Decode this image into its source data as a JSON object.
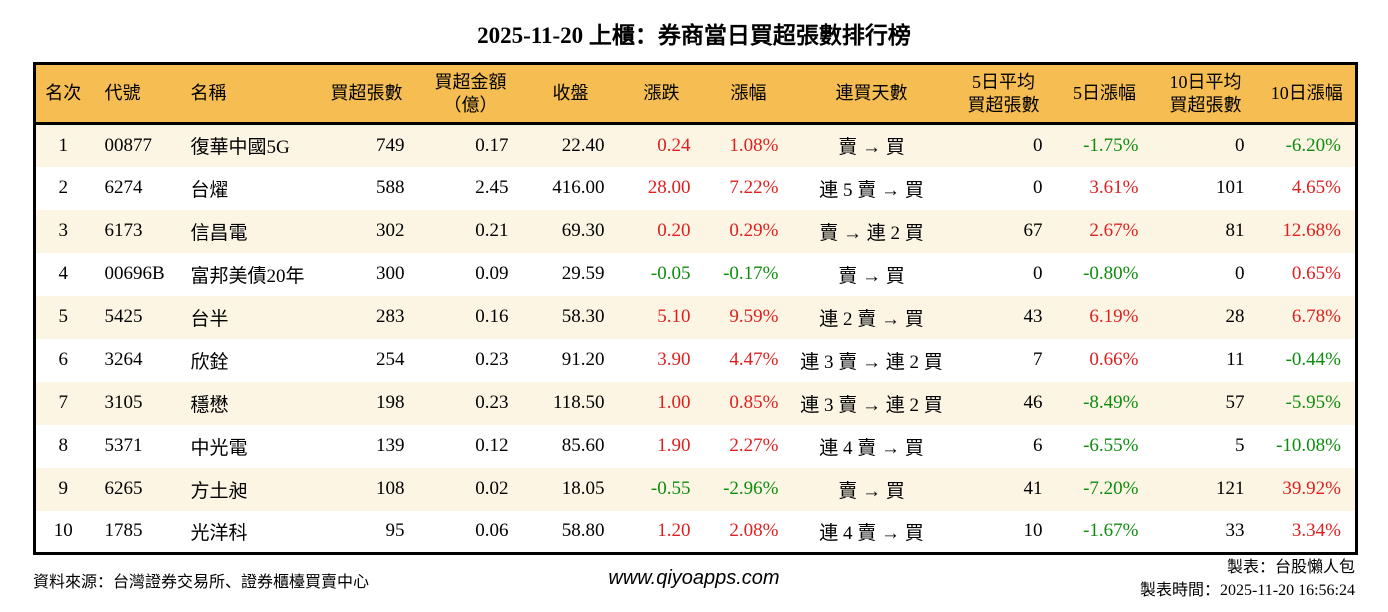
{
  "title": "2025-11-20 上櫃：券商當日買超張數排行榜",
  "colors": {
    "header-bg": "#f5bd52",
    "stripe-bg": "#fdf5e3",
    "red": "#dd1f1f",
    "green": "#0e8c0e"
  },
  "table": {
    "headers": [
      "名次",
      "代號",
      "名稱",
      "買超張數",
      "買超金額\n（億）",
      "收盤",
      "漲跌",
      "漲幅",
      "連買天數",
      "5日平均\n買超張數",
      "5日漲幅",
      "10日平均\n買超張數",
      "10日漲幅"
    ],
    "rows": [
      {
        "cells": [
          {
            "text": "1"
          },
          {
            "text": "00877"
          },
          {
            "text": "復華中國5G"
          },
          {
            "text": "749"
          },
          {
            "text": "0.17"
          },
          {
            "text": "22.40"
          },
          {
            "text": "0.24",
            "color": "red"
          },
          {
            "text": "1.08%",
            "color": "red"
          },
          {
            "text": "賣 → 買"
          },
          {
            "text": "0"
          },
          {
            "text": "-1.75%",
            "color": "green"
          },
          {
            "text": "0"
          },
          {
            "text": "-6.20%",
            "color": "green"
          }
        ]
      },
      {
        "cells": [
          {
            "text": "2"
          },
          {
            "text": "6274"
          },
          {
            "text": "台燿"
          },
          {
            "text": "588"
          },
          {
            "text": "2.45"
          },
          {
            "text": "416.00"
          },
          {
            "text": "28.00",
            "color": "red"
          },
          {
            "text": "7.22%",
            "color": "red"
          },
          {
            "text": "連 5 賣 → 買"
          },
          {
            "text": "0"
          },
          {
            "text": "3.61%",
            "color": "red"
          },
          {
            "text": "101"
          },
          {
            "text": "4.65%",
            "color": "red"
          }
        ]
      },
      {
        "cells": [
          {
            "text": "3"
          },
          {
            "text": "6173"
          },
          {
            "text": "信昌電"
          },
          {
            "text": "302"
          },
          {
            "text": "0.21"
          },
          {
            "text": "69.30"
          },
          {
            "text": "0.20",
            "color": "red"
          },
          {
            "text": "0.29%",
            "color": "red"
          },
          {
            "text": "賣 → 連 2 買"
          },
          {
            "text": "67"
          },
          {
            "text": "2.67%",
            "color": "red"
          },
          {
            "text": "81"
          },
          {
            "text": "12.68%",
            "color": "red"
          }
        ]
      },
      {
        "cells": [
          {
            "text": "4"
          },
          {
            "text": "00696B"
          },
          {
            "text": "富邦美債20年"
          },
          {
            "text": "300"
          },
          {
            "text": "0.09"
          },
          {
            "text": "29.59"
          },
          {
            "text": "-0.05",
            "color": "green"
          },
          {
            "text": "-0.17%",
            "color": "green"
          },
          {
            "text": "賣 → 買"
          },
          {
            "text": "0"
          },
          {
            "text": "-0.80%",
            "color": "green"
          },
          {
            "text": "0"
          },
          {
            "text": "0.65%",
            "color": "red"
          }
        ]
      },
      {
        "cells": [
          {
            "text": "5"
          },
          {
            "text": "5425"
          },
          {
            "text": "台半"
          },
          {
            "text": "283"
          },
          {
            "text": "0.16"
          },
          {
            "text": "58.30"
          },
          {
            "text": "5.10",
            "color": "red"
          },
          {
            "text": "9.59%",
            "color": "red"
          },
          {
            "text": "連 2 賣 → 買"
          },
          {
            "text": "43"
          },
          {
            "text": "6.19%",
            "color": "red"
          },
          {
            "text": "28"
          },
          {
            "text": "6.78%",
            "color": "red"
          }
        ]
      },
      {
        "cells": [
          {
            "text": "6"
          },
          {
            "text": "3264"
          },
          {
            "text": "欣銓"
          },
          {
            "text": "254"
          },
          {
            "text": "0.23"
          },
          {
            "text": "91.20"
          },
          {
            "text": "3.90",
            "color": "red"
          },
          {
            "text": "4.47%",
            "color": "red"
          },
          {
            "text": "連 3 賣 → 連 2 買"
          },
          {
            "text": "7"
          },
          {
            "text": "0.66%",
            "color": "red"
          },
          {
            "text": "11"
          },
          {
            "text": "-0.44%",
            "color": "green"
          }
        ]
      },
      {
        "cells": [
          {
            "text": "7"
          },
          {
            "text": "3105"
          },
          {
            "text": "穩懋"
          },
          {
            "text": "198"
          },
          {
            "text": "0.23"
          },
          {
            "text": "118.50"
          },
          {
            "text": "1.00",
            "color": "red"
          },
          {
            "text": "0.85%",
            "color": "red"
          },
          {
            "text": "連 3 賣 → 連 2 買"
          },
          {
            "text": "46"
          },
          {
            "text": "-8.49%",
            "color": "green"
          },
          {
            "text": "57"
          },
          {
            "text": "-5.95%",
            "color": "green"
          }
        ]
      },
      {
        "cells": [
          {
            "text": "8"
          },
          {
            "text": "5371"
          },
          {
            "text": "中光電"
          },
          {
            "text": "139"
          },
          {
            "text": "0.12"
          },
          {
            "text": "85.60"
          },
          {
            "text": "1.90",
            "color": "red"
          },
          {
            "text": "2.27%",
            "color": "red"
          },
          {
            "text": "連 4 賣 → 買"
          },
          {
            "text": "6"
          },
          {
            "text": "-6.55%",
            "color": "green"
          },
          {
            "text": "5"
          },
          {
            "text": "-10.08%",
            "color": "green"
          }
        ]
      },
      {
        "cells": [
          {
            "text": "9"
          },
          {
            "text": "6265"
          },
          {
            "text": "方土昶"
          },
          {
            "text": "108"
          },
          {
            "text": "0.02"
          },
          {
            "text": "18.05"
          },
          {
            "text": "-0.55",
            "color": "green"
          },
          {
            "text": "-2.96%",
            "color": "green"
          },
          {
            "text": "賣 → 買"
          },
          {
            "text": "41"
          },
          {
            "text": "-7.20%",
            "color": "green"
          },
          {
            "text": "121"
          },
          {
            "text": "39.92%",
            "color": "red"
          }
        ]
      },
      {
        "cells": [
          {
            "text": "10"
          },
          {
            "text": "1785"
          },
          {
            "text": "光洋科"
          },
          {
            "text": "95"
          },
          {
            "text": "0.06"
          },
          {
            "text": "58.80"
          },
          {
            "text": "1.20",
            "color": "red"
          },
          {
            "text": "2.08%",
            "color": "red"
          },
          {
            "text": "連 4 賣 → 買"
          },
          {
            "text": "10"
          },
          {
            "text": "-1.67%",
            "color": "green"
          },
          {
            "text": "33"
          },
          {
            "text": "3.34%",
            "color": "red"
          }
        ]
      }
    ]
  },
  "footer": {
    "source": "資料來源：台灣證券交易所、證券櫃檯買賣中心",
    "website": "www.qiyoapps.com",
    "maker": "製表：台股懶人包",
    "timestamp": "製表時間：2025-11-20 16:56:24"
  }
}
